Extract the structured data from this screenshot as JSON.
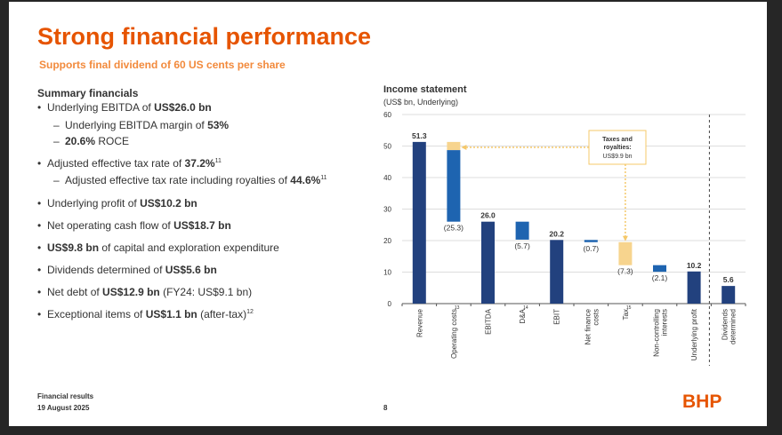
{
  "slide": {
    "title": "Strong financial performance",
    "subtitle": "Supports final dividend of 60 US cents per share",
    "summary_heading": "Summary financials",
    "footer_line1": "Financial results",
    "footer_line2": "19 August 2025",
    "page_number": "8",
    "logo": "BHP",
    "brand_color": "#e65400"
  },
  "summary": [
    {
      "level": 1,
      "pre": "Underlying EBITDA of ",
      "bold": "US$26.0 bn",
      "post": "",
      "sup": ""
    },
    {
      "level": 2,
      "pre": "Underlying EBITDA margin of ",
      "bold": "53%",
      "post": "",
      "sup": ""
    },
    {
      "level": 2,
      "pre": "",
      "bold": "20.6%",
      "post": " ROCE",
      "sup": ""
    },
    {
      "level": 1,
      "pre": "Adjusted effective tax rate of ",
      "bold": "37.2%",
      "post": "",
      "sup": "11"
    },
    {
      "level": 2,
      "pre": "Adjusted effective tax rate including royalties of ",
      "bold": "44.6%",
      "post": "",
      "sup": "11"
    },
    {
      "level": 1,
      "pre": "Underlying profit of ",
      "bold": "US$10.2 bn",
      "post": "",
      "sup": ""
    },
    {
      "level": 1,
      "pre": "Net operating cash flow of ",
      "bold": "US$18.7 bn",
      "post": "",
      "sup": ""
    },
    {
      "level": 1,
      "pre": "",
      "bold": "US$9.8 bn",
      "post": " of capital and exploration expenditure",
      "sup": ""
    },
    {
      "level": 1,
      "pre": "Dividends determined of ",
      "bold": "US$5.6 bn",
      "post": "",
      "sup": ""
    },
    {
      "level": 1,
      "pre": "Net debt of ",
      "bold": "US$12.9 bn",
      "post": " (FY24: US$9.1 bn)",
      "sup": ""
    },
    {
      "level": 1,
      "pre": "Exceptional items of ",
      "bold": "US$1.1 bn",
      "post": " (after-tax)",
      "sup": "12"
    }
  ],
  "chart_data": {
    "type": "bar",
    "subtype": "waterfall",
    "title": "Income statement",
    "subtitle": "(US$ bn, Underlying)",
    "ylim": [
      0,
      60
    ],
    "yticks": [
      0,
      10,
      20,
      30,
      40,
      50,
      60
    ],
    "grid": true,
    "categories": [
      "Revenue",
      "Operating costs",
      "EBITDA",
      "D&A",
      "EBIT",
      "Net finance costs",
      "Tax",
      "Non-controlling interests",
      "Underlying profit",
      "Dividends determined"
    ],
    "category_sups": [
      "",
      "13",
      "",
      "14",
      "",
      "",
      "15",
      "",
      "",
      ""
    ],
    "bars": [
      {
        "kind": "total",
        "start": 0,
        "end": 51.3,
        "label": "51.3"
      },
      {
        "kind": "decrease",
        "start": 51.3,
        "end": 26.0,
        "label": "(25.3)",
        "royalties_portion": 2.6
      },
      {
        "kind": "total",
        "start": 0,
        "end": 26.0,
        "label": "26.0"
      },
      {
        "kind": "decrease",
        "start": 26.0,
        "end": 20.3,
        "label": "(5.7)"
      },
      {
        "kind": "total",
        "start": 0,
        "end": 20.2,
        "label": "20.2"
      },
      {
        "kind": "decrease",
        "start": 20.2,
        "end": 19.5,
        "label": "(0.7)"
      },
      {
        "kind": "tax",
        "start": 19.5,
        "end": 12.2,
        "label": "(7.3)"
      },
      {
        "kind": "decrease",
        "start": 12.2,
        "end": 10.1,
        "label": "(2.1)"
      },
      {
        "kind": "total",
        "start": 0,
        "end": 10.2,
        "label": "10.2"
      },
      {
        "kind": "total",
        "start": 0,
        "end": 5.6,
        "label": "5.6"
      }
    ],
    "callout": {
      "line1": "Taxes and",
      "line2": "royalties:",
      "line3": "US$9.9 bn"
    },
    "colors": {
      "total": "#22417e",
      "decrease": "#1e64b0",
      "tax": "#f7d48e",
      "grid": "#dddddd",
      "callout": "#f5c86a"
    }
  }
}
